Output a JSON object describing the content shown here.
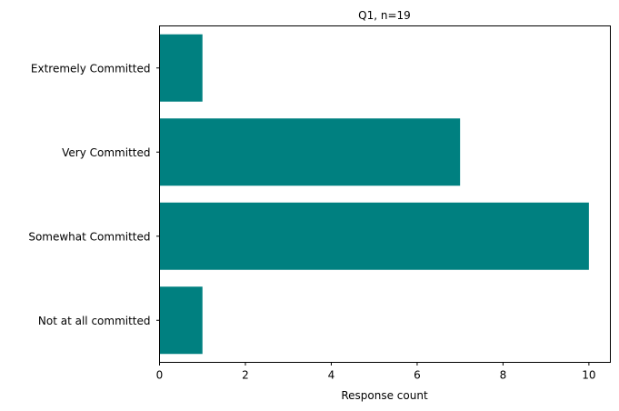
{
  "chart_data": {
    "type": "bar",
    "orientation": "horizontal",
    "title": "Q1, n=19",
    "xlabel": "Response count",
    "ylabel": "",
    "categories": [
      "Extremely Committed",
      "Very Committed",
      "Somewhat Committed",
      "Not at all committed"
    ],
    "values": [
      1,
      7,
      10,
      1
    ],
    "xlim": [
      0,
      10.5
    ],
    "xticks": [
      0,
      2,
      4,
      6,
      8,
      10
    ],
    "grid": false,
    "bar_color": "#008080"
  }
}
